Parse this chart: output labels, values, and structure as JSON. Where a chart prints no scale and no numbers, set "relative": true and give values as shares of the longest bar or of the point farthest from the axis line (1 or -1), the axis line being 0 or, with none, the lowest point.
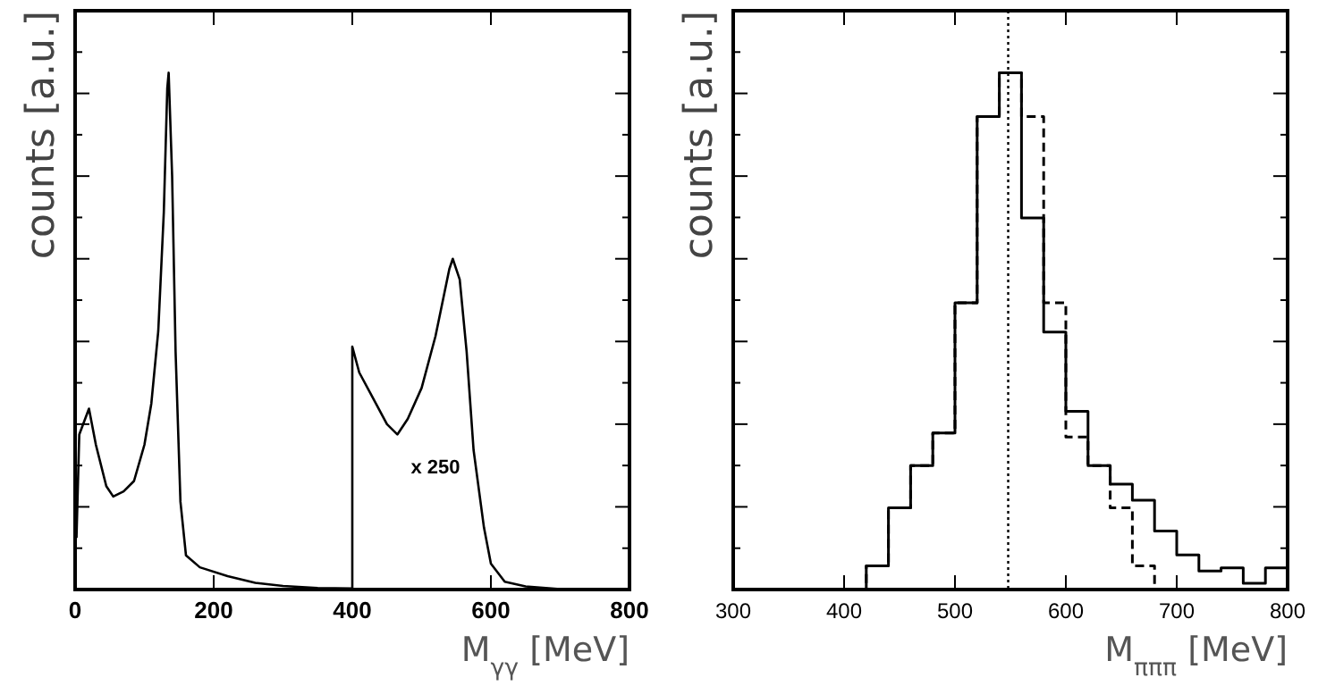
{
  "chart_data": [
    {
      "type": "line",
      "relative": true,
      "xlabel": "M$_{γγ}$  [MeV]",
      "ylabel": "counts [a.u.]",
      "xlim": [
        0,
        800
      ],
      "xticks": [
        0,
        200,
        400,
        600,
        800
      ],
      "tick_labels": "x",
      "annotations": [
        "x 250"
      ],
      "x": [
        2,
        6,
        20,
        30,
        45,
        55,
        70,
        85,
        100,
        110,
        120,
        128,
        133,
        135,
        140,
        145,
        152,
        160,
        180,
        220,
        260,
        300,
        350,
        400,
        400,
        410,
        430,
        450,
        465,
        480,
        500,
        520,
        540,
        545,
        555,
        565,
        575,
        590,
        600,
        620,
        650,
        700
      ],
      "series": [
        {
          "color": "#000000",
          "values": [
            0.1,
            0.3,
            0.35,
            0.28,
            0.2,
            0.18,
            0.19,
            0.21,
            0.28,
            0.36,
            0.5,
            0.73,
            0.97,
            1,
            0.8,
            0.46,
            0.17,
            0.066,
            0.043,
            0.026,
            0.013,
            0.007,
            0.003,
            0.002,
            0.47,
            0.42,
            0.37,
            0.32,
            0.3,
            0.33,
            0.39,
            0.49,
            0.62,
            0.64,
            0.6,
            0.46,
            0.27,
            0.12,
            0.05,
            0.015,
            0.006,
            0.001
          ]
        }
      ]
    },
    {
      "type": "step",
      "relative": true,
      "xlabel": "M$_{πππ}$  [MeV]",
      "ylabel": "counts [a.u.]",
      "xlim": [
        300,
        800
      ],
      "xticks": [
        300,
        400,
        500,
        600,
        700,
        800
      ],
      "tick_labels": "x",
      "series": [
        {
          "color": "#000000",
          "line_style": "solid",
          "x": [
            400,
            420,
            440,
            460,
            480,
            500,
            520,
            540,
            560,
            580,
            600,
            620,
            640,
            660,
            680,
            700,
            720,
            740,
            760,
            780,
            800
          ],
          "values": [
            0,
            0.046,
            0.158,
            0.24,
            0.303,
            0.555,
            0.915,
            1,
            0.719,
            0.498,
            0.345,
            0.24,
            0.204,
            0.173,
            0.113,
            0.067,
            0.036,
            0.042,
            0.012,
            0.042,
            0.042
          ]
        },
        {
          "color": "#000000",
          "line_style": "dashed",
          "x": [
            400,
            420,
            440,
            460,
            480,
            500,
            520,
            540,
            560,
            580,
            600,
            620,
            640,
            660,
            680
          ],
          "values": [
            0,
            0.046,
            0.158,
            0.24,
            0.303,
            0.555,
            0.915,
            1,
            0.915,
            0.555,
            0.295,
            0.24,
            0.158,
            0.046,
            0
          ]
        }
      ],
      "ref_lines": [
        {
          "axis": "x",
          "value": 548,
          "line_style": "dotted"
        }
      ]
    }
  ]
}
